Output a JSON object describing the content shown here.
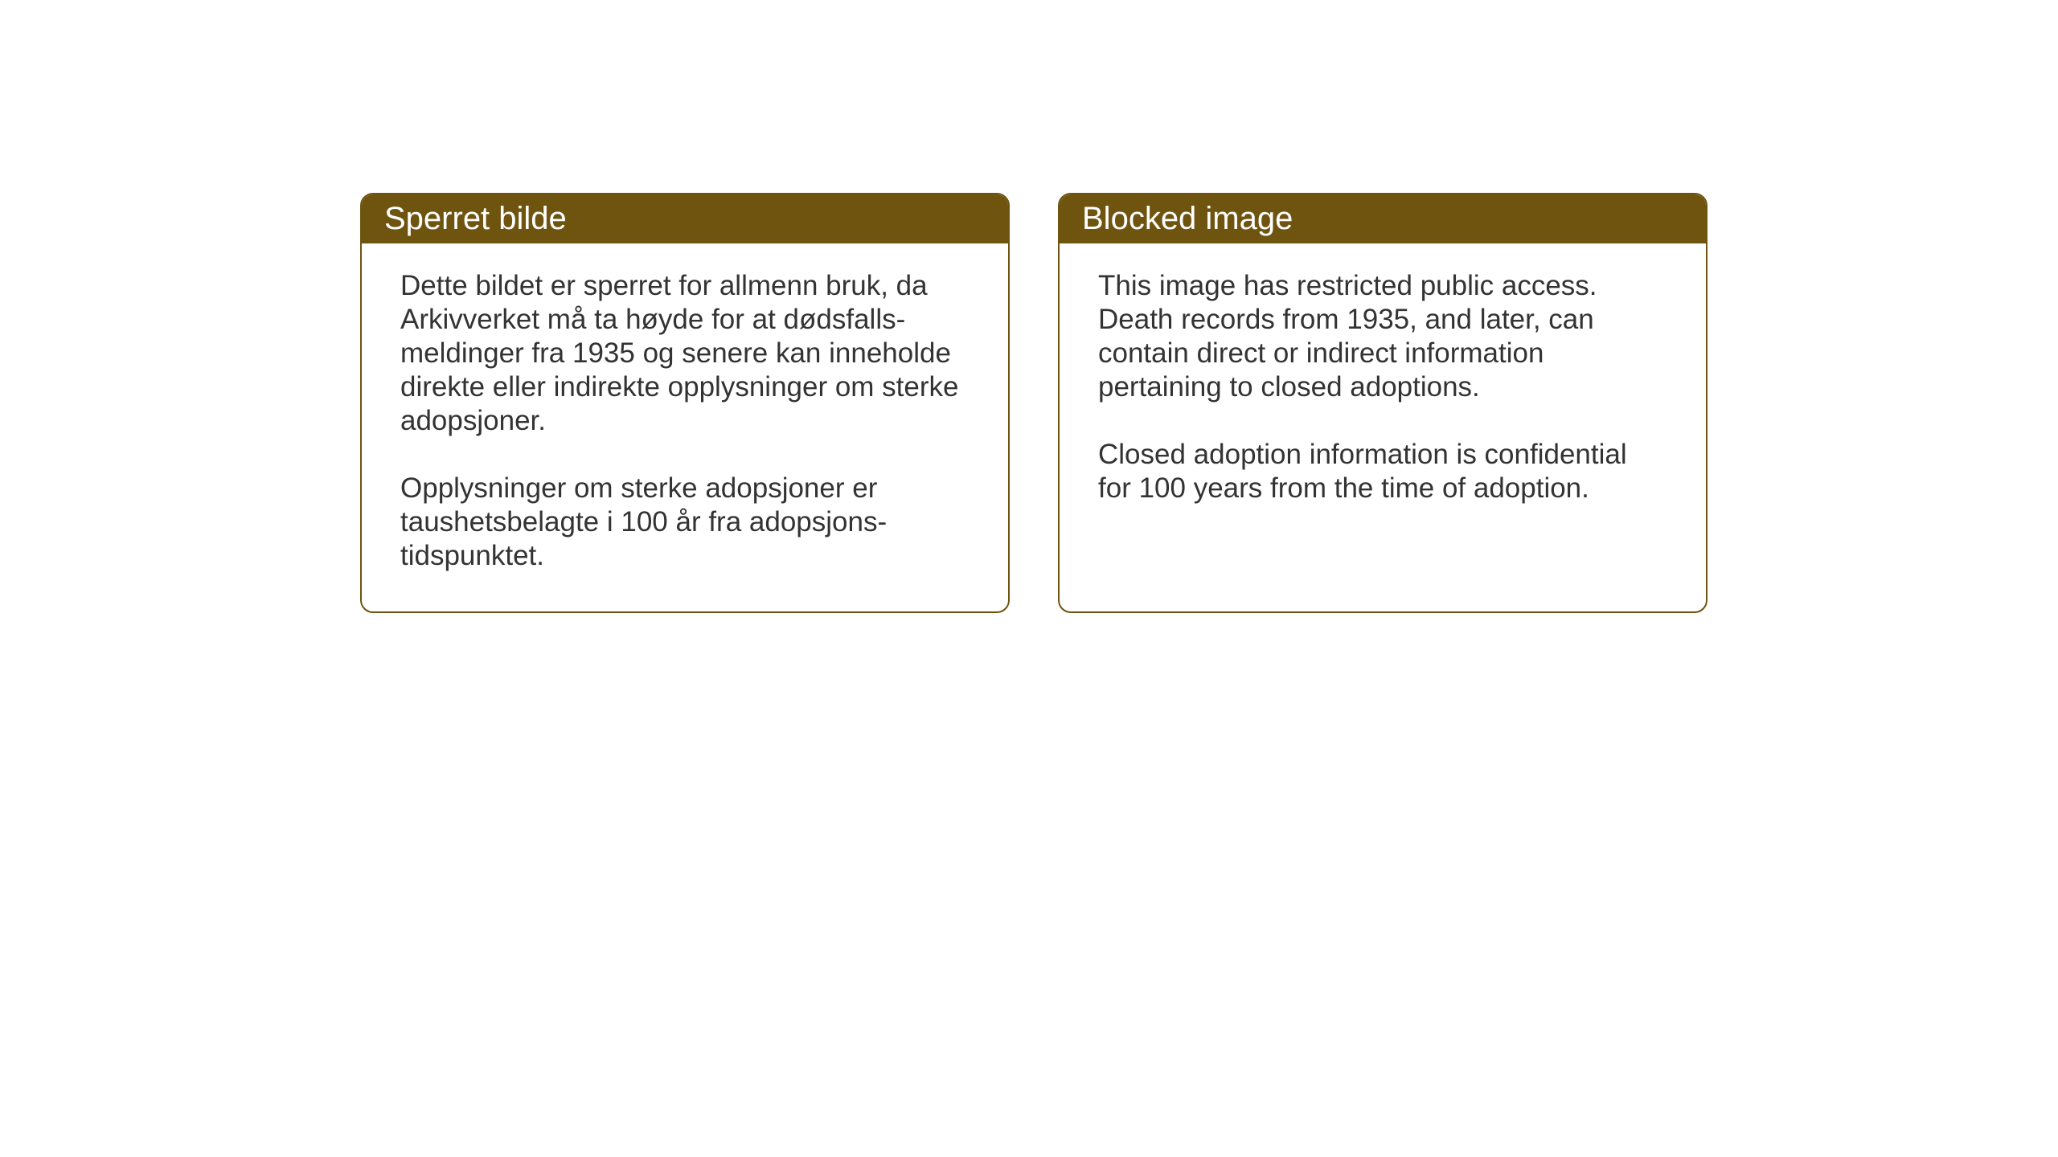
{
  "layout": {
    "background_color": "#ffffff",
    "card_border_color": "#6e540f",
    "card_border_width": 2,
    "card_border_radius": 16,
    "header_background_color": "#6e540f",
    "header_text_color": "#ffffff",
    "body_text_color": "#333333",
    "header_fontsize": 40,
    "body_fontsize": 35
  },
  "cards": [
    {
      "title": "Sperret bilde",
      "paragraph1": "Dette bildet er sperret for allmenn bruk, da Arkivverket må ta høyde for at dødsfalls-meldinger fra 1935 og senere kan inneholde direkte eller indirekte opplysninger om sterke adopsjoner.",
      "paragraph2": "Opplysninger om sterke adopsjoner er taushetsbelagte i 100 år fra adopsjons-tidspunktet."
    },
    {
      "title": "Blocked image",
      "paragraph1": "This image has restricted public access. Death records from 1935, and later, can contain direct or indirect information pertaining to closed adoptions.",
      "paragraph2": "Closed adoption information is confidential for 100 years from the time of adoption."
    }
  ]
}
